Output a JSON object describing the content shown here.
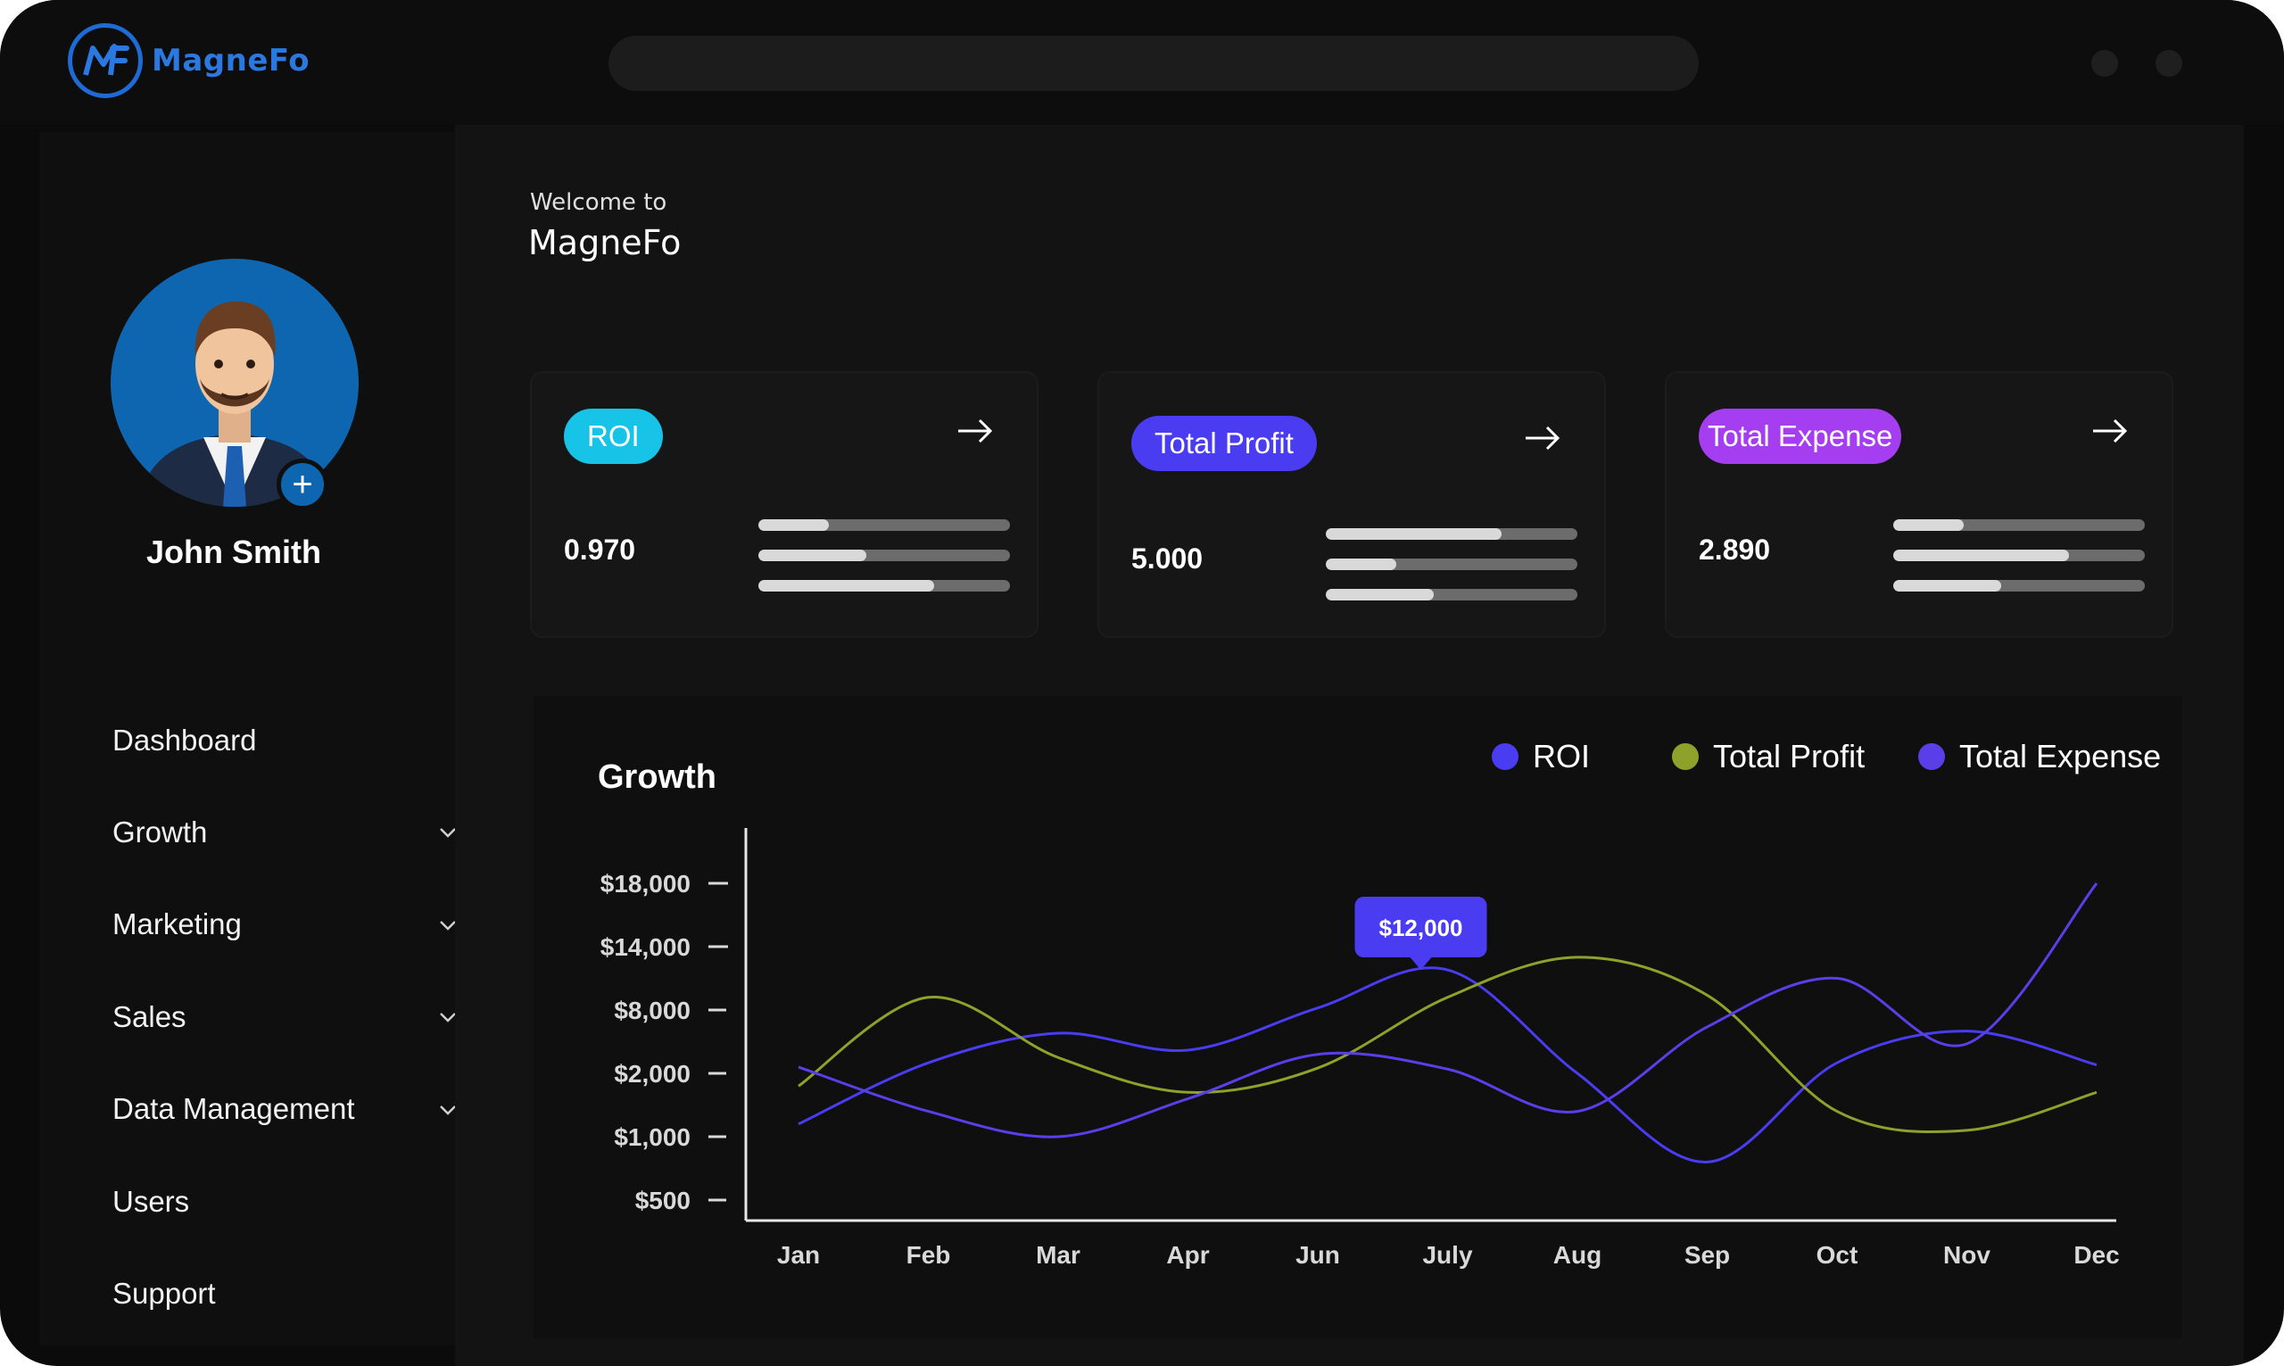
{
  "app": {
    "name": "MagneFo"
  },
  "colors": {
    "accent_blue": "#1f6bd6",
    "roi": "#17c3e6",
    "profit": "#4a3cf0",
    "expense": "#a43ef0",
    "series_roi": "#4a3cf0",
    "series_profit": "#8ea12a",
    "series_expense": "#5a3ee8"
  },
  "user": {
    "name": "John Smith"
  },
  "nav": {
    "items": [
      {
        "label": "Dashboard"
      },
      {
        "label": "Growth"
      },
      {
        "label": "Marketing"
      },
      {
        "label": "Sales"
      },
      {
        "label": "Data Management"
      },
      {
        "label": "Users"
      },
      {
        "label": "Support"
      }
    ]
  },
  "welcome": {
    "line1": "Welcome to",
    "line2": "MagneFo"
  },
  "cards": [
    {
      "label": "ROI",
      "value": "0.970",
      "progress": [
        0.28,
        0.43,
        0.7
      ]
    },
    {
      "label": "Total Profit",
      "value": "5.000",
      "progress": [
        0.7,
        0.28,
        0.43
      ]
    },
    {
      "label": "Total Expense",
      "value": "2.890",
      "progress": [
        0.28,
        0.7,
        0.43
      ]
    }
  ],
  "chart_data": {
    "type": "line",
    "title": "Growth",
    "categories": [
      "Jan",
      "Feb",
      "Mar",
      "Apr",
      "Jun",
      "July",
      "Aug",
      "Sep",
      "Oct",
      "Nov",
      "Dec"
    ],
    "y_ticks": [
      "$18,000",
      "$14,000",
      "$8,000",
      "$2,000",
      "$1,000",
      "$500"
    ],
    "series": [
      {
        "name": "ROI",
        "values": [
          1200,
          3000,
          5800,
          4200,
          8200,
          11800,
          2000,
          800,
          3000,
          6000,
          2800
        ]
      },
      {
        "name": "Total Profit",
        "values": [
          1800,
          9200,
          3500,
          1700,
          2500,
          9200,
          13000,
          9400,
          1400,
          1100,
          1700
        ]
      },
      {
        "name": "Total Expense",
        "values": [
          2600,
          1400,
          1000,
          1600,
          3800,
          2400,
          1400,
          6400,
          11000,
          4800,
          18000
        ]
      }
    ],
    "tooltip": "$12,000",
    "legend_position": "top-right",
    "grid": false
  }
}
